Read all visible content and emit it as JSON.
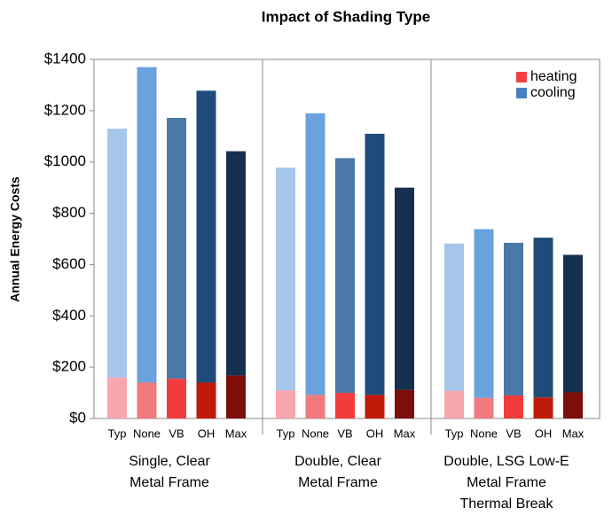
{
  "chart_data": {
    "type": "bar",
    "stacked": true,
    "title": "Impact of Shading Type",
    "ylabel": "Annual Energy Costs",
    "categories": [
      "Typ",
      "None",
      "VB",
      "OH",
      "Max",
      "Typ",
      "None",
      "VB",
      "OH",
      "Max",
      "Typ",
      "None",
      "VB",
      "OH",
      "Max"
    ],
    "groups": [
      [
        "Single, Clear",
        "Metal Frame"
      ],
      [
        "Double, Clear",
        "Metal Frame"
      ],
      [
        "Double, LSG Low-E",
        "Metal Frame",
        "Thermal Break"
      ]
    ],
    "series": [
      {
        "name": "heating",
        "color": "#f04040",
        "bar_colors": [
          "#f8a6ae",
          "#f07a7e",
          "#f23c3c",
          "#c01a0a",
          "#7d0e08",
          "#f8a6ae",
          "#f07a7e",
          "#f23c3c",
          "#c01a0a",
          "#7d0e08",
          "#f8a6ae",
          "#f07a7e",
          "#f23c3c",
          "#c01a0a",
          "#7d0e08"
        ],
        "values": [
          160,
          140,
          155,
          140,
          168,
          110,
          92,
          100,
          92,
          112,
          108,
          80,
          90,
          82,
          102
        ]
      },
      {
        "name": "cooling",
        "color": "#4a80c0",
        "bar_colors": [
          "#a6c6ea",
          "#69a2de",
          "#4a78a8",
          "#1f4b7b",
          "#16304f",
          "#a6c6ea",
          "#69a2de",
          "#4a78a8",
          "#1f4b7b",
          "#16304f",
          "#a6c6ea",
          "#69a2de",
          "#4a78a8",
          "#1f4b7b",
          "#16304f"
        ],
        "values": [
          970,
          1230,
          1017,
          1138,
          874,
          868,
          1098,
          915,
          1018,
          788,
          574,
          658,
          595,
          623,
          536
        ]
      }
    ],
    "ylim": [
      0,
      1400
    ],
    "yticks": [
      {
        "value": 0,
        "label": "$0"
      },
      {
        "value": 200,
        "label": "$200"
      },
      {
        "value": 400,
        "label": "$400"
      },
      {
        "value": 600,
        "label": "$600"
      },
      {
        "value": 800,
        "label": "$800"
      },
      {
        "value": 1000,
        "label": "$1000"
      },
      {
        "value": 1200,
        "label": "$1200"
      },
      {
        "value": 1400,
        "label": "$1400"
      }
    ],
    "legend": "upper right"
  }
}
